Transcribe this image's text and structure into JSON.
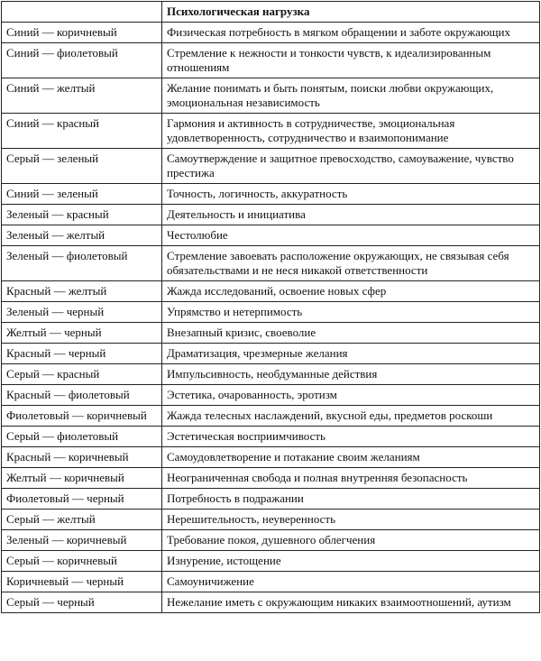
{
  "table": {
    "header": "Психологическая нагрузка",
    "rows": [
      [
        "Синий — коричневый",
        "Физическая потребность в мягком обращении и заботе окружающих"
      ],
      [
        "Синий — фиолетовый",
        "Стремление к нежности и тонкости чувств, к идеализированным отношениям"
      ],
      [
        "Синий — желтый",
        "Желание понимать и быть понятым, поиски любви окружающих, эмоциональная независимость"
      ],
      [
        "Синий — красный",
        "Гармония и активность в сотрудничестве, эмоциональная удовлетворенность, сотрудничество и взаимопонимание"
      ],
      [
        "Серый — зеленый",
        "Самоутверждение и защитное превосходство, самоуважение, чувство престижа"
      ],
      [
        "Синий — зеленый",
        "Точность, логичность, аккуратность"
      ],
      [
        "Зеленый — красный",
        "Деятельность и инициатива"
      ],
      [
        "Зеленый — желтый",
        "Честолюбие"
      ],
      [
        "Зеленый — фиолетовый",
        "Стремление завоевать расположение окружающих, не связывая себя обязательствами и не неся никакой ответственности"
      ],
      [
        "Красный — желтый",
        "Жажда исследований, освоение новых сфер"
      ],
      [
        "Зеленый — черный",
        "Упрямство и нетерпимость"
      ],
      [
        "Желтый — черный",
        "Внезапный кризис, своеволие"
      ],
      [
        "Красный — черный",
        "Драматизация, чрезмерные желания"
      ],
      [
        "Серый — красный",
        "Импульсивность, необдуманные действия"
      ],
      [
        "Красный — фиолетовый",
        "Эстетика, очарованность, эротизм"
      ],
      [
        "Фиолетовый — коричневый",
        "Жажда телесных наслаждений, вкусной еды, предметов роскоши"
      ],
      [
        "Серый — фиолетовый",
        "Эстетическая восприимчивость"
      ],
      [
        "Красный — коричневый",
        "Самоудовлетворение и потакание своим желаниям"
      ],
      [
        "Желтый — коричневый",
        "Неограниченная свобода и полная внутренняя безопасность"
      ],
      [
        "Фиолетовый — черный",
        "Потребность в подражании"
      ],
      [
        "Серый — желтый",
        "Нерешительность, неуверенность"
      ],
      [
        "Зеленый — коричневый",
        "Требование покоя, душевного облегчения"
      ],
      [
        "Серый — коричневый",
        "Изнурение, истощение"
      ],
      [
        "Коричневый — черный",
        "Самоуничижение"
      ],
      [
        "Серый — черный",
        "Нежелание иметь с окружающим никаких взаимоотношений, аутизм"
      ]
    ]
  }
}
